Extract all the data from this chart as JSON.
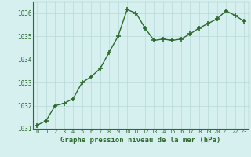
{
  "x": [
    0,
    1,
    2,
    3,
    4,
    5,
    6,
    7,
    8,
    9,
    10,
    11,
    12,
    13,
    14,
    15,
    16,
    17,
    18,
    19,
    20,
    21,
    22,
    23
  ],
  "y": [
    1031.15,
    1031.35,
    1032.0,
    1032.1,
    1032.3,
    1033.0,
    1033.25,
    1033.6,
    1034.3,
    1035.0,
    1036.15,
    1036.0,
    1035.35,
    1034.82,
    1034.88,
    1034.82,
    1034.88,
    1035.1,
    1035.35,
    1035.55,
    1035.75,
    1036.1,
    1035.9,
    1035.65
  ],
  "line_color": "#2d6a2d",
  "marker": "+",
  "marker_size": 4,
  "marker_lw": 1.2,
  "bg_color": "#d6f0f0",
  "grid_color": "#b8d8d8",
  "xlabel": "Graphe pression niveau de la mer (hPa)",
  "xlabel_color": "#2d6a2d",
  "tick_color": "#2d6a2d",
  "ylim": [
    1031.0,
    1036.5
  ],
  "yticks": [
    1031,
    1032,
    1033,
    1034,
    1035,
    1036
  ],
  "xticks": [
    0,
    1,
    2,
    3,
    4,
    5,
    6,
    7,
    8,
    9,
    10,
    11,
    12,
    13,
    14,
    15,
    16,
    17,
    18,
    19,
    20,
    21,
    22,
    23
  ],
  "spine_color": "#2d6a2d",
  "line_width": 1.0
}
